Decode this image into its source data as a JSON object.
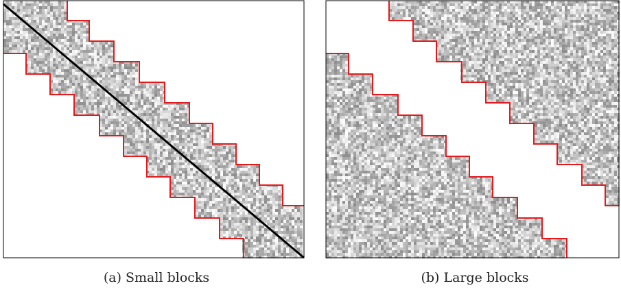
{
  "figure": {
    "panels": [
      {
        "id": "a",
        "caption": "(a) Small blocks",
        "diagonal_line": true,
        "band_outline_color": "#e31a1c"
      },
      {
        "id": "b",
        "caption": "(b) Large blocks",
        "diagonal_line": false,
        "band_outline_color": "#e31a1c"
      }
    ]
  }
}
